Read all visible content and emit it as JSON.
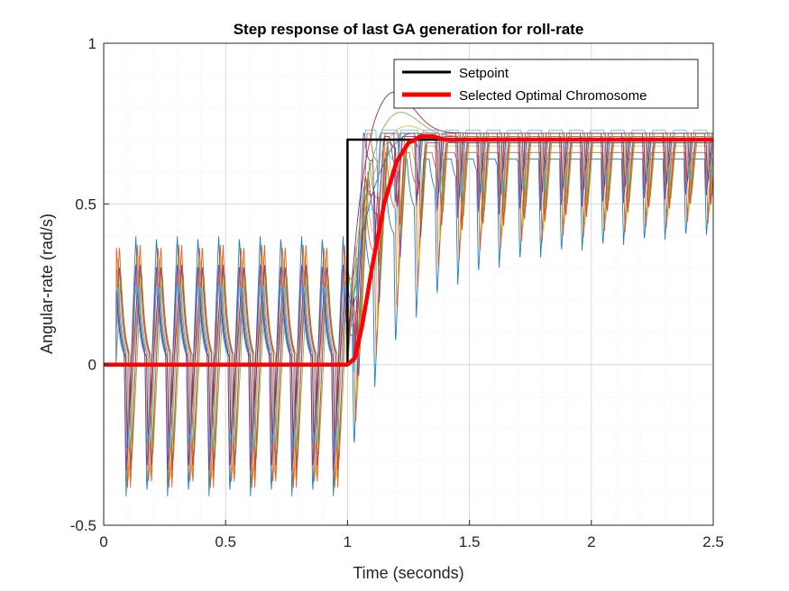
{
  "chart_data": {
    "type": "line",
    "title": "Step response of last GA generation for roll-rate",
    "xlabel": "Time (seconds)",
    "ylabel": "Angular-rate (rad/s)",
    "xlim": [
      0,
      2.5
    ],
    "ylim": [
      -0.5,
      1
    ],
    "grid": true,
    "legend_location": "top-right",
    "x_ticks": [
      0,
      0.5,
      1,
      1.5,
      2,
      2.5
    ],
    "x_tick_labels": [
      "0",
      "0.5",
      "1",
      "1.5",
      "2",
      "2.5"
    ],
    "y_ticks": [
      -0.5,
      0,
      0.5,
      1
    ],
    "y_tick_labels": [
      "-0.5",
      "0",
      "0.5",
      "1"
    ],
    "legend": [
      {
        "name": "Setpoint",
        "color": "#000000"
      },
      {
        "name": "Selected Optimal Chromosome",
        "color": "#ff0000"
      }
    ],
    "series": [
      {
        "name": "Setpoint",
        "color": "#000000",
        "x": [
          0,
          1.0,
          1.0,
          2.5
        ],
        "y": [
          0,
          0,
          0.7,
          0.7
        ]
      },
      {
        "name": "Selected Optimal Chromosome",
        "color": "#ff0000",
        "x": [
          0,
          1.0,
          1.03,
          1.06,
          1.1,
          1.15,
          1.2,
          1.25,
          1.3,
          1.35,
          1.4,
          1.5,
          1.7,
          2.0,
          2.5
        ],
        "y": [
          0,
          0,
          0.02,
          0.12,
          0.3,
          0.5,
          0.63,
          0.69,
          0.71,
          0.71,
          0.7,
          0.7,
          0.7,
          0.7,
          0.7
        ]
      }
    ],
    "candidate_population": {
      "colors": [
        "#0072BD",
        "#D95319",
        "#EDB120",
        "#7E2F8E",
        "#77AC30",
        "#4DBEEE",
        "#A2142F"
      ],
      "count": 14,
      "final_values": [
        0.62,
        0.64,
        0.66,
        0.67,
        0.68,
        0.68,
        0.69,
        0.69,
        0.7,
        0.7,
        0.7,
        0.71,
        0.71,
        0.72
      ],
      "peak_values": [
        0.62,
        0.64,
        0.68,
        0.7,
        0.71,
        0.72,
        0.73,
        0.74,
        0.75,
        0.76,
        0.78,
        0.8,
        0.84,
        0.86
      ],
      "rise_times": [
        1.45,
        1.35,
        1.3,
        1.25,
        1.22,
        1.2,
        1.18,
        1.16,
        1.15,
        1.14,
        1.13,
        1.12,
        1.11,
        1.1
      ],
      "spike_period": 0.085,
      "spike_max": [
        0.45,
        0.42,
        0.38,
        0.35,
        0.32,
        0.28,
        0.25
      ],
      "spike_min": [
        -0.46,
        -0.43,
        -0.4,
        -0.37,
        -0.33,
        -0.29,
        -0.26
      ]
    }
  }
}
